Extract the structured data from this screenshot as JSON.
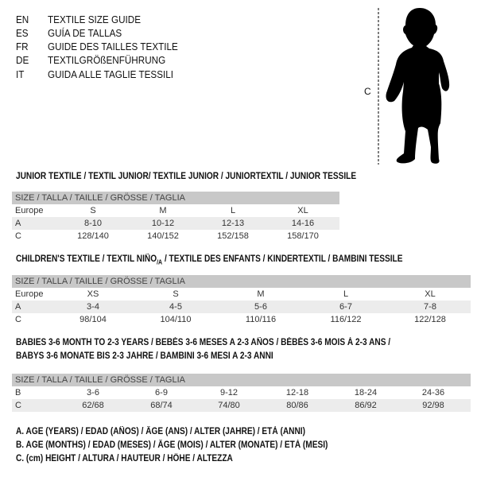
{
  "languages": [
    {
      "code": "EN",
      "title": "TEXTILE SIZE GUIDE"
    },
    {
      "code": "ES",
      "title": "GUÍA DE TALLAS"
    },
    {
      "code": "FR",
      "title": "GUIDE DES TAILLES TEXTILE"
    },
    {
      "code": "DE",
      "title": "TEXTILGRÖßENFÜHRUNG"
    },
    {
      "code": "IT",
      "title": "GUIDA ALLE TAGLIE TESSILI"
    }
  ],
  "figure": {
    "label": "C",
    "icon": "baby-silhouette-icon"
  },
  "size_header": "SIZE / TALLA / TAILLE / GRÖSSE / TAGLIA",
  "junior": {
    "title": "JUNIOR TEXTILE / TEXTIL JUNIOR/ TEXTILE JUNIOR / JUNIORTEXTIL / JUNIOR TESSILE",
    "rows": [
      {
        "label": "Europe",
        "values": [
          "S",
          "M",
          "L",
          "XL"
        ]
      },
      {
        "label": "A",
        "values": [
          "8-10",
          "10-12",
          "12-13",
          "14-16"
        ]
      },
      {
        "label": "C",
        "values": [
          "128/140",
          "140/152",
          "152/158",
          "158/170"
        ]
      }
    ]
  },
  "children": {
    "title_a": "CHILDREN'S TEXTILE / TEXTIL NIÑO",
    "title_sub": "/A",
    "title_b": " / TEXTILE DES ENFANTS / KINDERTEXTIL / BAMBINI TESSILE",
    "rows": [
      {
        "label": "Europe",
        "values": [
          "XS",
          "S",
          "M",
          "L",
          "XL"
        ]
      },
      {
        "label": "A",
        "values": [
          "3-4",
          "4-5",
          "5-6",
          "6-7",
          "7-8"
        ]
      },
      {
        "label": "C",
        "values": [
          "98/104",
          "104/110",
          "110/116",
          "116/122",
          "122/128"
        ]
      }
    ]
  },
  "babies": {
    "title_line1": "BABIES 3-6 MONTH TO 2-3 YEARS / BEBÉS 3-6 MESES A 2-3 AÑOS / BÉBÉS 3-6 MOIS À 2-3 ANS /",
    "title_line2": "BABYS 3-6 MONATE BIS 2-3 JAHRE / BAMBINI 3-6 MESI A 2-3 ANNI",
    "rows": [
      {
        "label": "B",
        "values": [
          "3-6",
          "6-9",
          "9-12",
          "12-18",
          "18-24",
          "24-36"
        ]
      },
      {
        "label": "C",
        "values": [
          "62/68",
          "68/74",
          "74/80",
          "80/86",
          "86/92",
          "92/98"
        ]
      }
    ]
  },
  "legend": [
    "A. AGE (YEARS) / EDAD (AÑOS) / ÂGE (ANS) / ALTER (JAHRE) / ETÀ (ANNI)",
    "B. AGE (MONTHS) / EDAD (MESES) / ÂGE (MOIS) / ALTER (MONATE) / ETÀ (MESI)",
    "C. (cm) HEIGHT / ALTURA / HAUTEUR / HÖHE / ALTEZZA"
  ]
}
